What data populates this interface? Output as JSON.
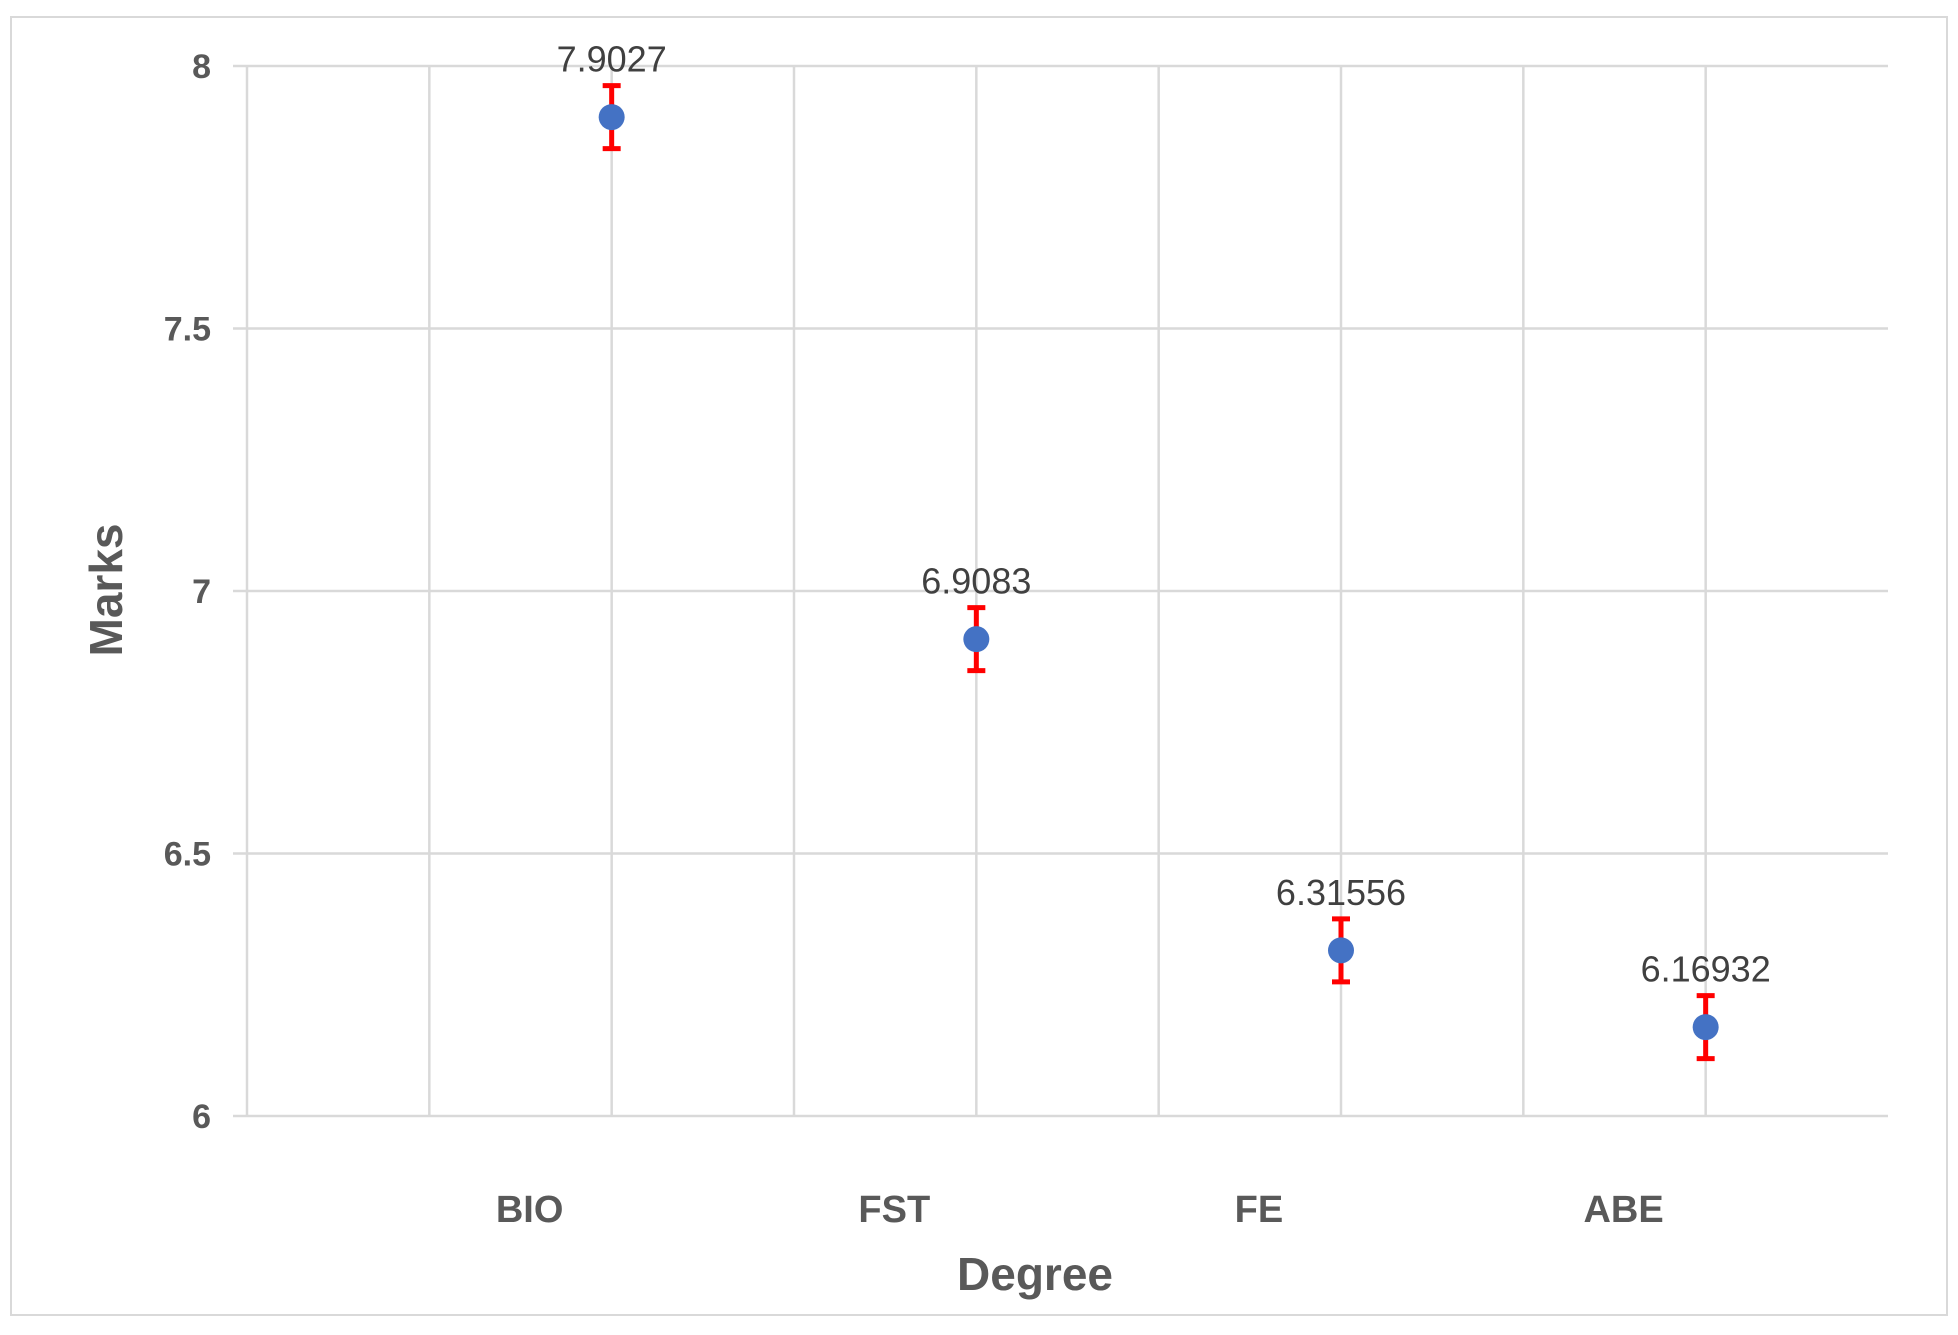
{
  "chart_data": {
    "type": "scatter",
    "title": "",
    "xlabel": "Degree",
    "ylabel": "Marks",
    "categories": [
      "BIO",
      "FST",
      "FE",
      "ABE"
    ],
    "ylim": [
      6,
      8
    ],
    "yticks": [
      6,
      6.5,
      7,
      7.5,
      8
    ],
    "ytick_labels": [
      "6",
      "6.5",
      "7",
      "7.5",
      "8"
    ],
    "grid": true,
    "legend": "none",
    "series": [
      {
        "name": "Marks",
        "values": [
          7.9027,
          6.9083,
          6.31556,
          6.16932
        ],
        "labels": [
          "7.9027",
          "6.9083",
          "6.31556",
          "6.16932"
        ],
        "error": [
          0.06,
          0.06,
          0.06,
          0.06
        ],
        "point_color": "#4472c4",
        "error_color": "#ff0000"
      }
    ]
  }
}
